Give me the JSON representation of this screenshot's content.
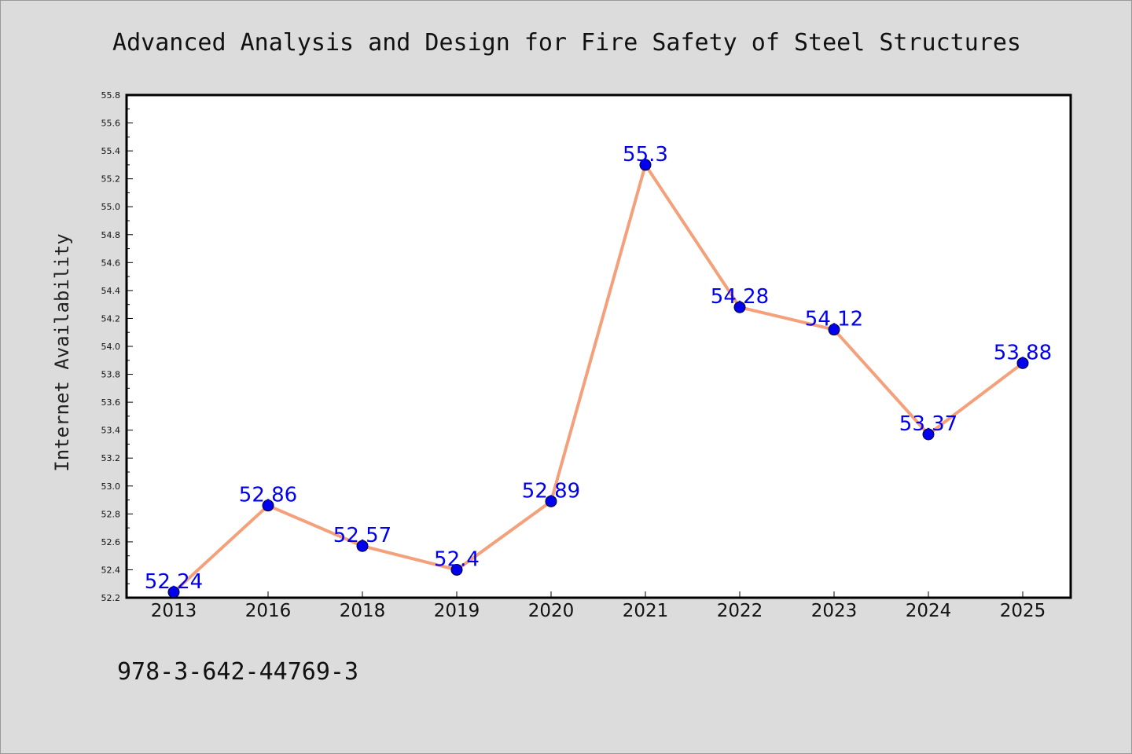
{
  "chart_data": {
    "type": "line",
    "title": "Advanced Analysis and Design for Fire Safety of Steel Structures",
    "xlabel": "",
    "ylabel": "Internet Availability",
    "categories": [
      "2013",
      "2016",
      "2018",
      "2019",
      "2020",
      "2021",
      "2022",
      "2023",
      "2024",
      "2025"
    ],
    "series": [
      {
        "values": [
          52.24,
          52.86,
          52.57,
          52.4,
          52.89,
          55.3,
          54.28,
          54.12,
          53.37,
          53.88
        ],
        "data_labels": [
          "52.24",
          "52.86",
          "52.57",
          "52.4",
          "52.89",
          "55.3",
          "54.28",
          "54.12",
          "53.37",
          "53.88"
        ]
      }
    ],
    "ylim": [
      52.2,
      55.8
    ],
    "yticks": [
      "52.2",
      "52.4",
      "52.6",
      "52.8",
      "53.0",
      "53.2",
      "53.4",
      "53.6",
      "53.8",
      "54.0",
      "54.2",
      "54.4",
      "54.6",
      "54.8",
      "55.0",
      "55.2",
      "55.4",
      "55.6",
      "55.8"
    ],
    "grid": false,
    "legend": "none",
    "colors": {
      "line": "#f4a07a",
      "marker": "#0000ee",
      "data_label": "#0000ee",
      "plot_background": "#ffffff",
      "page_background": "#dcdcdc"
    }
  },
  "footer": {
    "isbn": "978-3-642-44769-3"
  }
}
